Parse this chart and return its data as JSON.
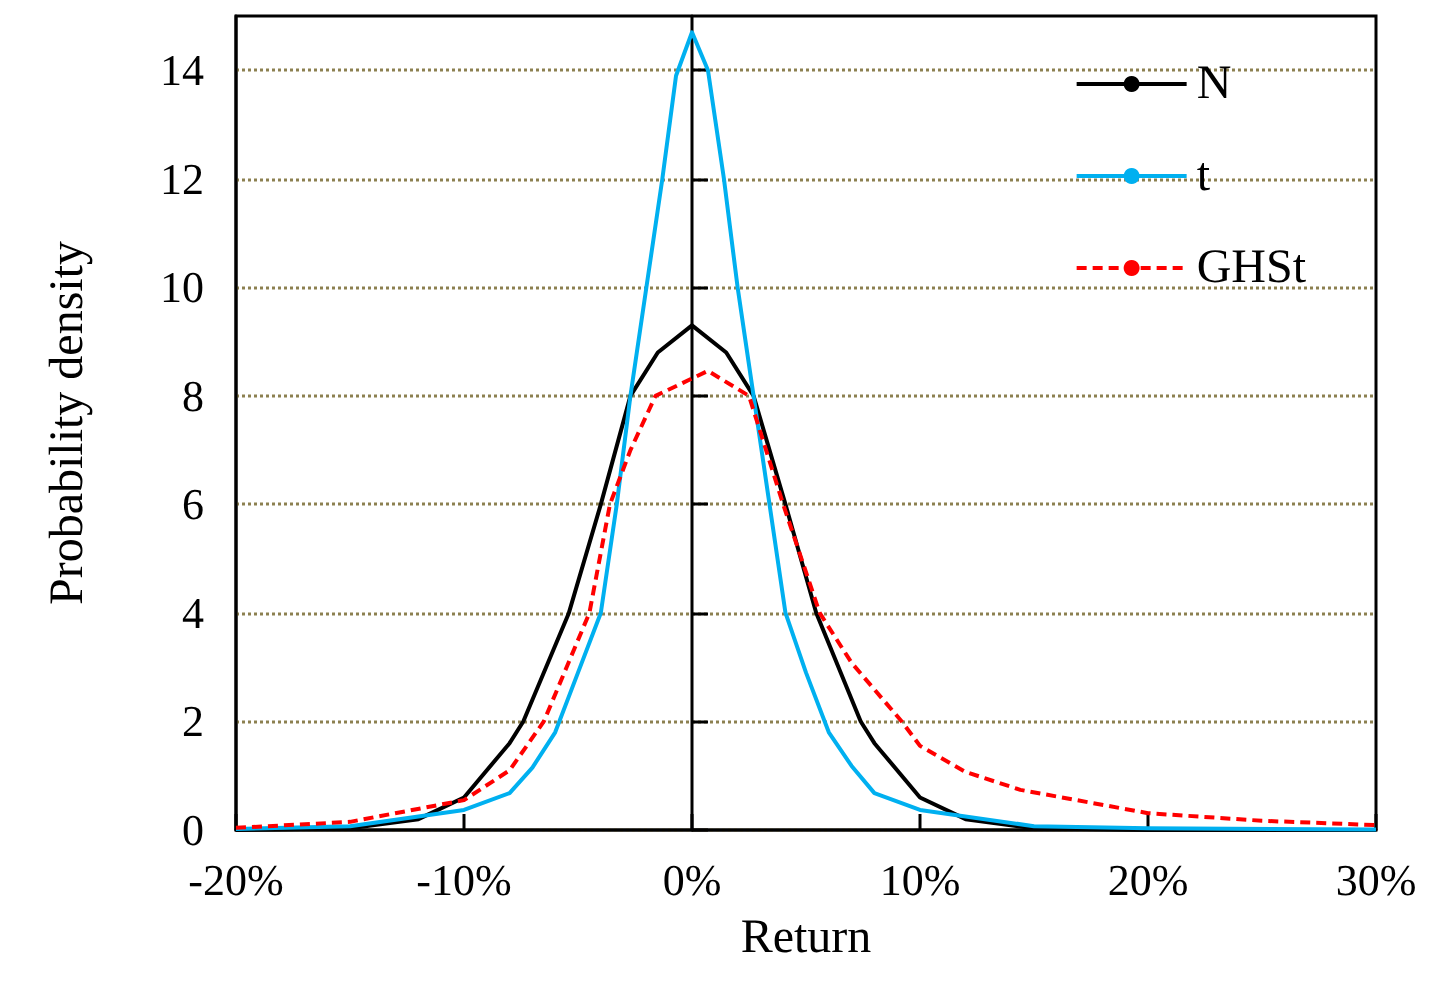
{
  "chart_data": {
    "type": "line",
    "xlabel": "Return",
    "ylabel": "Probability density",
    "xlim": [
      -20,
      30
    ],
    "xticks": [
      {
        "value": -20,
        "label": "-20%"
      },
      {
        "value": -10,
        "label": "-10%"
      },
      {
        "value": 0,
        "label": "0%"
      },
      {
        "value": 10,
        "label": "10%"
      },
      {
        "value": 20,
        "label": "20%"
      },
      {
        "value": 30,
        "label": "30%"
      }
    ],
    "ylim": [
      0,
      15
    ],
    "yticks": [
      0,
      2,
      4,
      6,
      8,
      10,
      12,
      14
    ],
    "grid": "y",
    "legend": "top right",
    "marker": "none",
    "series": [
      {
        "name": "N",
        "color": "#000000",
        "line_style": "solid",
        "x": [
          -20,
          -15,
          -12,
          -10,
          -8,
          -7.4,
          -5.4,
          -4,
          -2.7,
          -1.5,
          0,
          1.5,
          2.7,
          4.1,
          5.45,
          7.4,
          8,
          10,
          12,
          15,
          20,
          30
        ],
        "values": [
          0,
          0.03,
          0.2,
          0.6,
          1.6,
          2,
          4,
          6,
          8,
          8.8,
          9.3,
          8.8,
          8,
          6,
          4,
          2,
          1.6,
          0.6,
          0.2,
          0.03,
          0,
          0
        ]
      },
      {
        "name": "t",
        "color": "#00b0f0",
        "line_style": "solid",
        "x": [
          -20,
          -15,
          -10,
          -8,
          -7,
          -6,
          -5,
          -4,
          -3.3,
          -2.7,
          -2,
          -1.3,
          -0.7,
          0,
          0.7,
          1.4,
          2,
          2.7,
          3.4,
          4.1,
          5,
          6,
          7,
          8,
          10,
          15,
          20,
          30
        ],
        "values": [
          0.02,
          0.07,
          0.37,
          0.68,
          1.15,
          1.8,
          2.9,
          4,
          6,
          8,
          10,
          12,
          13.9,
          14.7,
          14,
          12,
          10,
          8,
          6,
          4,
          2.9,
          1.8,
          1.18,
          0.68,
          0.37,
          0.07,
          0.03,
          0.01
        ]
      },
      {
        "name": "GHSt",
        "color": "#ff0000",
        "line_style": "dashed",
        "x": [
          -20,
          -15,
          -10,
          -8,
          -6.5,
          -5.5,
          -4.5,
          -3.6,
          -2.7,
          -1.6,
          0.7,
          2.5,
          4,
          5.6,
          7,
          9.2,
          10,
          12,
          14.4,
          20,
          25,
          30
        ],
        "values": [
          0.04,
          0.15,
          0.55,
          1.1,
          2,
          3,
          4,
          6,
          7,
          8,
          8.46,
          8,
          6,
          4,
          3.08,
          2,
          1.55,
          1.07,
          0.74,
          0.31,
          0.17,
          0.09
        ]
      }
    ]
  }
}
